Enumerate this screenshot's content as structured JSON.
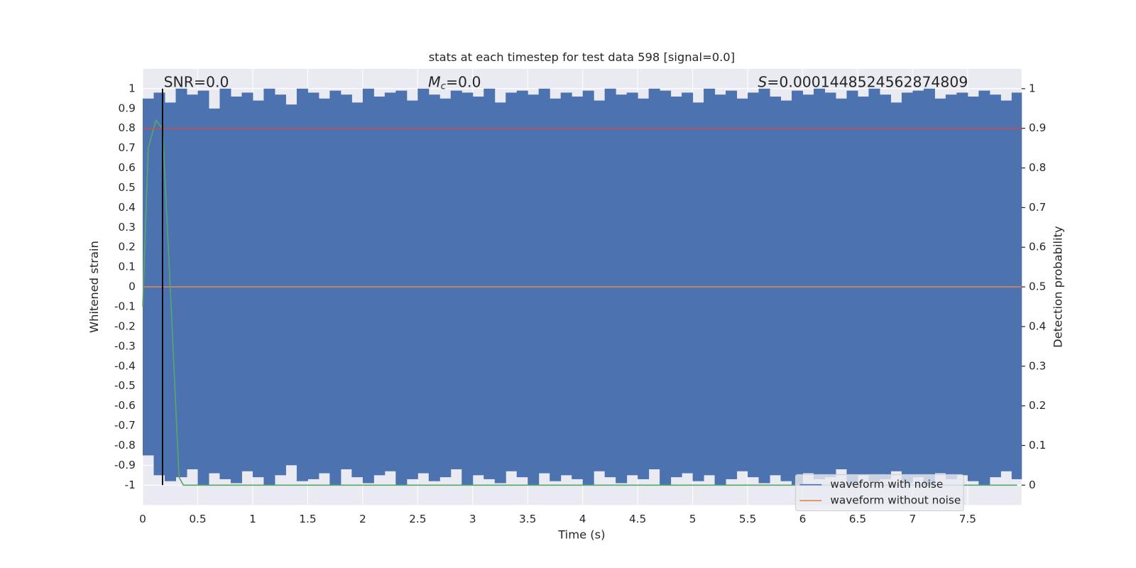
{
  "chart_data": {
    "type": "waveform",
    "title": "stats at each timestep for test data 598 [signal=0.0]",
    "x_label": "Time (s)",
    "y_label": "Whitened strain",
    "y2_label": "Detection probability",
    "annotations": [
      {
        "text": "SNR=0.0"
      },
      {
        "symbol": "M",
        "subscript": "c",
        "text": "=0.0"
      },
      {
        "symbol": "S",
        "text": "=0.0001448524562874809"
      }
    ],
    "xlim": [
      0,
      7.99
    ],
    "xticks": [
      0.0,
      0.5,
      1.0,
      1.5,
      2.0,
      2.5,
      3.0,
      3.5,
      4.0,
      4.5,
      5.0,
      5.5,
      6.0,
      6.5,
      7.0,
      7.5
    ],
    "ylim": [
      -1.1,
      1.1
    ],
    "yticks": [
      -1.0,
      -0.9,
      -0.8,
      -0.7,
      -0.6,
      -0.5,
      -0.4,
      -0.3,
      -0.2,
      -0.1,
      0.0,
      0.1,
      0.2,
      0.3,
      0.4,
      0.5,
      0.6,
      0.7,
      0.8,
      0.9,
      1.0
    ],
    "y2lim": [
      -0.05,
      1.05
    ],
    "y2ticks": [
      0.0,
      0.1,
      0.2,
      0.3,
      0.4,
      0.5,
      0.6,
      0.7,
      0.8,
      0.9,
      1.0
    ],
    "grid": true,
    "legend": "lower right",
    "series": [
      {
        "name": "waveform with noise",
        "color": "#4c72b0",
        "x": [
          0.0,
          0.1,
          0.2,
          0.3,
          0.4,
          0.5,
          0.6,
          0.7,
          0.8,
          0.9,
          1.0,
          1.1,
          1.2,
          1.3,
          1.4,
          1.5,
          1.6,
          1.7,
          1.8,
          1.9,
          2.0,
          2.1,
          2.2,
          2.3,
          2.4,
          2.5,
          2.6,
          2.7,
          2.8,
          2.9,
          3.0,
          3.1,
          3.2,
          3.3,
          3.4,
          3.5,
          3.6,
          3.7,
          3.8,
          3.9,
          4.0,
          4.1,
          4.2,
          4.3,
          4.4,
          4.5,
          4.6,
          4.7,
          4.8,
          4.9,
          5.0,
          5.1,
          5.2,
          5.3,
          5.4,
          5.5,
          5.6,
          5.7,
          5.8,
          5.9,
          6.0,
          6.1,
          6.2,
          6.3,
          6.4,
          6.5,
          6.6,
          6.7,
          6.8,
          6.9,
          7.0,
          7.1,
          7.2,
          7.3,
          7.4,
          7.5,
          7.6,
          7.7,
          7.8,
          7.9
        ],
        "high": [
          0.95,
          0.98,
          0.93,
          1.0,
          0.97,
          0.99,
          0.9,
          1.0,
          0.96,
          0.98,
          0.94,
          1.0,
          0.97,
          0.92,
          1.0,
          0.98,
          0.95,
          0.99,
          0.97,
          0.93,
          1.0,
          0.96,
          0.98,
          0.99,
          0.94,
          1.0,
          0.97,
          0.95,
          0.99,
          0.98,
          0.96,
          1.0,
          0.93,
          0.98,
          0.99,
          0.97,
          1.0,
          0.95,
          0.98,
          0.96,
          0.99,
          0.94,
          1.0,
          0.97,
          0.98,
          0.95,
          1.0,
          0.99,
          0.96,
          0.98,
          0.93,
          1.0,
          0.97,
          0.99,
          0.95,
          0.98,
          1.0,
          0.96,
          0.94,
          0.99,
          0.97,
          1.0,
          0.98,
          0.95,
          0.99,
          0.96,
          1.0,
          0.97,
          0.93,
          0.98,
          0.99,
          1.0,
          0.95,
          0.97,
          0.98,
          0.96,
          0.99,
          0.97,
          0.94,
          0.98
        ],
        "low": [
          -0.85,
          -0.95,
          -0.98,
          -0.96,
          -0.92,
          -1.0,
          -0.94,
          -0.97,
          -0.99,
          -0.93,
          -0.96,
          -1.0,
          -0.95,
          -0.9,
          -0.98,
          -0.97,
          -0.94,
          -1.0,
          -0.92,
          -0.96,
          -0.99,
          -0.95,
          -0.93,
          -1.0,
          -0.97,
          -0.94,
          -0.98,
          -0.96,
          -0.92,
          -1.0,
          -0.95,
          -0.97,
          -0.99,
          -0.93,
          -0.96,
          -1.0,
          -0.94,
          -0.98,
          -0.95,
          -0.97,
          -1.0,
          -0.93,
          -0.96,
          -0.99,
          -0.95,
          -0.97,
          -0.92,
          -1.0,
          -0.96,
          -0.94,
          -0.98,
          -0.95,
          -1.0,
          -0.97,
          -0.93,
          -0.96,
          -0.99,
          -0.95,
          -0.98,
          -1.0,
          -0.94,
          -0.97,
          -0.96,
          -0.92,
          -1.0,
          -0.95,
          -0.98,
          -0.97,
          -0.93,
          -0.99,
          -0.96,
          -1.0,
          -0.94,
          -0.97,
          -0.95,
          -0.98,
          -1.0,
          -0.96,
          -0.93,
          -0.97
        ]
      },
      {
        "name": "waveform without noise",
        "color": "#dd8452",
        "x": [
          0.0,
          7.99
        ],
        "values": [
          0.0,
          0.0
        ]
      },
      {
        "color": "#55a868",
        "axis": "y2",
        "x": [
          0.0,
          0.05,
          0.12,
          0.18,
          0.25,
          0.33,
          0.37,
          7.95
        ],
        "values": [
          0.45,
          0.85,
          0.92,
          0.9,
          0.5,
          0.02,
          0.0,
          0.0
        ]
      },
      {
        "color": "#c44e52",
        "axis": "y2",
        "x": [
          0.0,
          7.99
        ],
        "values": [
          0.9,
          0.9
        ]
      }
    ],
    "vline": {
      "x": 0.18,
      "color": "#000000"
    }
  }
}
